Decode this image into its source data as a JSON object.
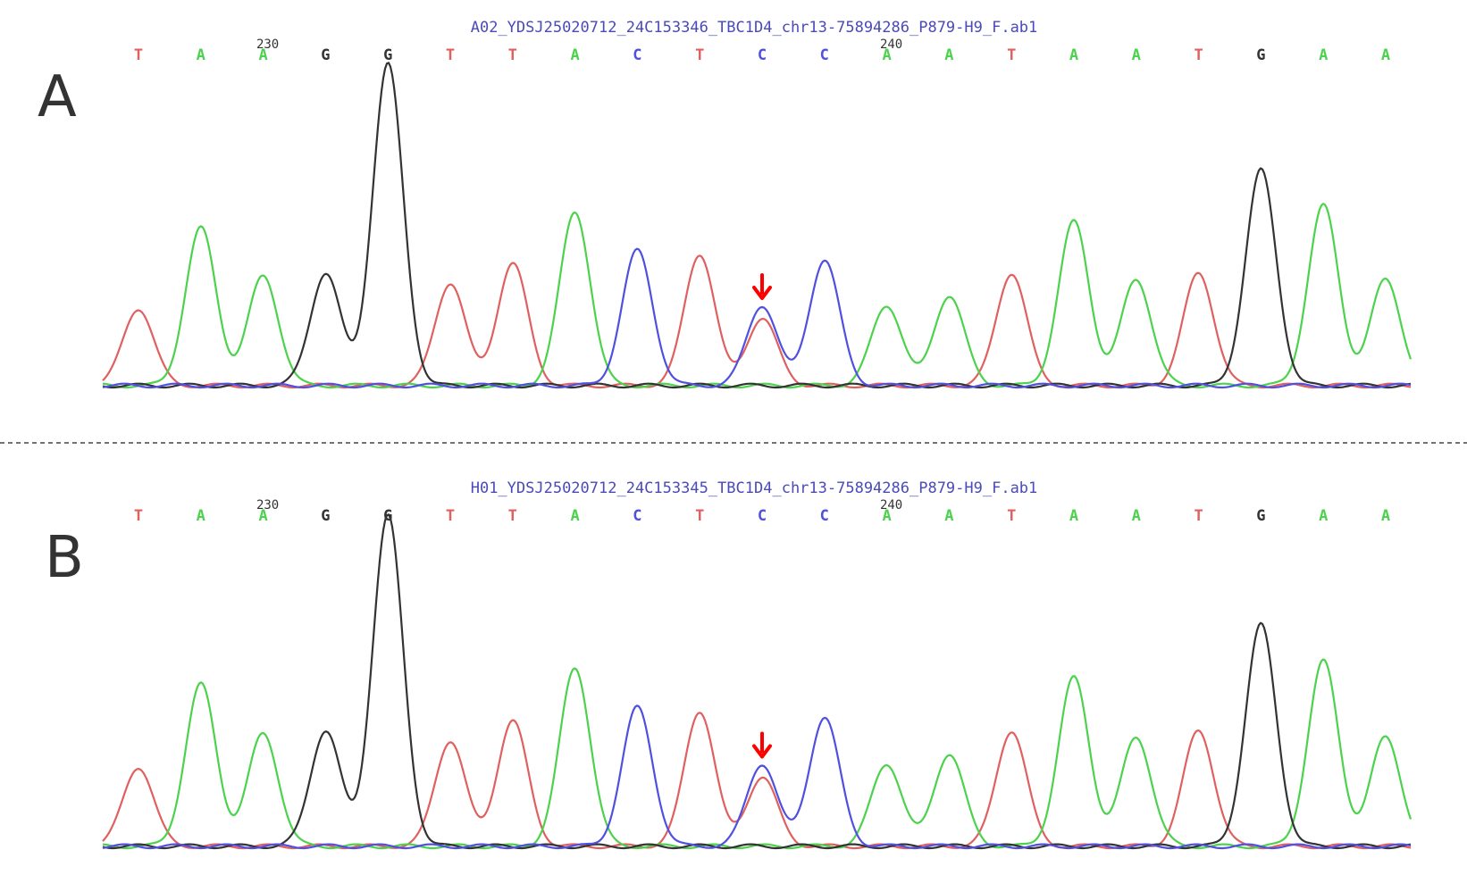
{
  "colors": {
    "A": "#4cd24c",
    "C": "#5050e0",
    "G": "#333333",
    "T": "#e06060",
    "arrow": "#ff0000",
    "title": "#4a4ab8"
  },
  "panels": [
    {
      "letter": "A",
      "filename": "A02_YDSJ25020712_24C153346_TBC1D4_chr13-75894286_P879-H9_F.ab1",
      "bases": [
        "T",
        "A",
        "A",
        "G",
        "G",
        "T",
        "T",
        "A",
        "C",
        "T",
        "C",
        "C",
        "A",
        "A",
        "T",
        "A",
        "A",
        "T",
        "G",
        "A",
        "A"
      ],
      "position_labels": [
        {
          "label": "230",
          "index": 2
        },
        {
          "label": "240",
          "index": 12
        }
      ],
      "peak_heights": [
        0.24,
        0.49,
        0.34,
        0.35,
        1.0,
        0.32,
        0.38,
        0.54,
        0.42,
        0.41,
        0.25,
        0.39,
        0.25,
        0.28,
        0.35,
        0.51,
        0.33,
        0.35,
        0.67,
        0.56,
        0.33
      ],
      "het_index": 10,
      "het_secondary": {
        "base": "T",
        "height": 0.21
      },
      "arrow_index": 10
    },
    {
      "letter": "B",
      "filename": "H01_YDSJ25020712_24C153345_TBC1D4_chr13-75894286_P879-H9_F.ab1",
      "bases": [
        "T",
        "A",
        "A",
        "G",
        "G",
        "T",
        "T",
        "A",
        "C",
        "T",
        "C",
        "C",
        "A",
        "A",
        "T",
        "A",
        "A",
        "T",
        "G",
        "A",
        "A"
      ],
      "position_labels": [
        {
          "label": "230",
          "index": 2
        },
        {
          "label": "240",
          "index": 12
        }
      ],
      "peak_heights": [
        0.24,
        0.49,
        0.34,
        0.35,
        1.0,
        0.32,
        0.38,
        0.54,
        0.42,
        0.41,
        0.25,
        0.39,
        0.25,
        0.28,
        0.35,
        0.51,
        0.33,
        0.35,
        0.67,
        0.56,
        0.33
      ],
      "het_index": 10,
      "het_secondary": {
        "base": "T",
        "height": 0.21
      },
      "arrow_index": 10
    }
  ]
}
